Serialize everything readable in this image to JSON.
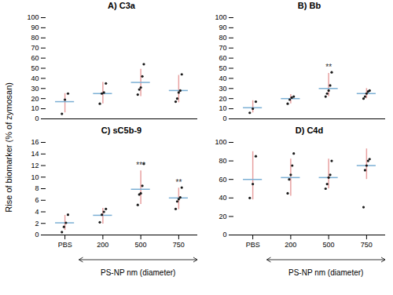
{
  "chart_data": [
    {
      "type": "scatter",
      "title": "A) C3a",
      "categories": [
        "PBS",
        "200",
        "500",
        "750"
      ],
      "means": [
        17,
        25,
        36,
        28
      ],
      "errors_low": [
        11,
        10,
        14,
        12
      ],
      "errors_high": [
        8,
        11,
        13,
        15
      ],
      "points": [
        [
          5,
          19,
          25
        ],
        [
          15,
          25,
          26,
          35
        ],
        [
          24,
          29,
          31,
          42,
          54
        ],
        [
          17,
          20,
          26,
          28,
          44
        ]
      ],
      "significance": [
        null,
        null,
        null,
        null
      ],
      "ylim": [
        0,
        100
      ],
      "yticks": [
        0,
        10,
        20,
        30,
        40,
        50,
        60,
        70,
        80,
        90,
        100
      ],
      "tick_labels": "y",
      "mean_color": "#7bafd4",
      "error_color": "#e8a0a0",
      "point_color": "#1a1a1a",
      "sig_color": "#333333"
    },
    {
      "type": "scatter",
      "title": "B) Bb",
      "categories": [
        "PBS",
        "200",
        "500",
        "750"
      ],
      "means": [
        11,
        20,
        30,
        25
      ],
      "errors_low": [
        5,
        5,
        8,
        5
      ],
      "errors_high": [
        7,
        4,
        15,
        5
      ],
      "points": [
        [
          6,
          10,
          17
        ],
        [
          15,
          19,
          21,
          22
        ],
        [
          22,
          25,
          28,
          33,
          46
        ],
        [
          20,
          22,
          25,
          27,
          28
        ]
      ],
      "significance": [
        null,
        null,
        "**",
        null
      ],
      "ylim": [
        0,
        100
      ],
      "yticks": [
        0,
        10,
        20,
        30,
        40,
        50,
        60,
        70,
        80,
        90,
        100
      ],
      "tick_labels": "y",
      "mean_color": "#7bafd4",
      "error_color": "#e8a0a0",
      "point_color": "#1a1a1a",
      "sig_color": "#333333"
    },
    {
      "type": "scatter",
      "title": "C) sC5b-9",
      "categories": [
        "PBS",
        "200",
        "500",
        "750"
      ],
      "means": [
        2.1,
        3.4,
        7.9,
        6.4
      ],
      "errors_low": [
        1.3,
        1.5,
        2.6,
        2.0
      ],
      "errors_high": [
        1.3,
        1.2,
        3.2,
        1.7
      ],
      "points": [
        [
          0.5,
          1.4,
          2.1,
          3.5
        ],
        [
          2.2,
          3.5,
          4.0,
          4.5
        ],
        [
          5.2,
          7.0,
          7.2,
          8.5,
          12.3
        ],
        [
          4.5,
          5.8,
          6.2,
          6.5,
          8.2
        ]
      ],
      "significance": [
        null,
        null,
        "***",
        "**"
      ],
      "ylim": [
        0,
        16
      ],
      "yticks": [
        0,
        2,
        4,
        6,
        8,
        10,
        12,
        14,
        16
      ],
      "xlabel": "PS-NP nm (diameter)",
      "mean_color": "#7bafd4",
      "error_color": "#e8a0a0",
      "point_color": "#1a1a1a",
      "sig_color": "#333333"
    },
    {
      "type": "scatter",
      "title": "D) C4d",
      "categories": [
        "PBS",
        "200",
        "500",
        "750"
      ],
      "means": [
        60,
        62,
        62,
        75
      ],
      "errors_low": [
        22,
        20,
        12,
        15
      ],
      "errors_high": [
        30,
        20,
        20,
        18
      ],
      "points": [
        [
          40,
          55,
          85
        ],
        [
          45,
          60,
          65,
          75,
          88
        ],
        [
          50,
          55,
          62,
          65,
          80
        ],
        [
          30,
          70,
          75,
          80,
          82
        ]
      ],
      "significance": [
        null,
        null,
        null,
        null
      ],
      "ylim": [
        0,
        100
      ],
      "yticks": [
        0,
        20,
        40,
        60,
        80,
        100
      ],
      "xlabel": "PS-NP nm (diameter)",
      "mean_color": "#7bafd4",
      "error_color": "#e8a0a0",
      "point_color": "#1a1a1a",
      "sig_color": "#333333"
    }
  ],
  "ylabel": "Rise of biomarker (% of zymosan)"
}
